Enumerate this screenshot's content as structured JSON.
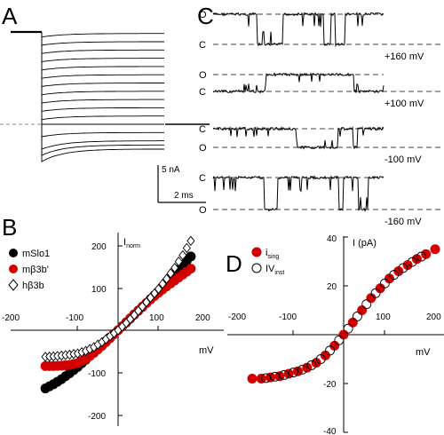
{
  "figure": {
    "panels": {
      "a": "A",
      "b": "B",
      "c": "C",
      "d": "D"
    }
  },
  "chart_data": [
    {
      "panel": "A",
      "type": "line",
      "scalebar": {
        "current": "5 nA",
        "time": "2 ms"
      },
      "traces": {
        "count": 16,
        "description_values_nA": {
          "hold_level": 0,
          "outward_steady_levels": [
            -11,
            -10,
            -9,
            -8,
            -7,
            -6,
            -5,
            -4,
            -3,
            -2,
            -1,
            0,
            1,
            2,
            2.5,
            3
          ],
          "tail_peak": 5.4
        }
      },
      "colors": {
        "trace": "#000000"
      }
    },
    {
      "panel": "C",
      "type": "line",
      "state_labels": {
        "open": "O",
        "closed": "C"
      },
      "traces": [
        {
          "voltage": "+160 mV",
          "top_state": "O",
          "bottom_state": "C"
        },
        {
          "voltage": "+100 mV",
          "top_state": "O",
          "bottom_state": "C"
        },
        {
          "voltage": "-100 mV",
          "top_state": "C",
          "bottom_state": "O"
        },
        {
          "voltage": "-160 mV",
          "top_state": "C",
          "bottom_state": "O"
        }
      ]
    },
    {
      "panel": "B",
      "type": "scatter",
      "ylabel": "I",
      "ylabel_sub": "norm",
      "xlabel": "mV",
      "xlim": [
        -200,
        200
      ],
      "ylim": [
        -200,
        200
      ],
      "xticks": [
        "-200",
        "-100",
        "100",
        "200"
      ],
      "yticks": [
        "200",
        "100",
        "-100",
        "-200"
      ],
      "series": [
        {
          "name": "mSlo1",
          "marker": "filled-circle",
          "color": "#000000",
          "x": [
            -180,
            -160,
            -140,
            -120,
            -100,
            -80,
            -60,
            -40,
            -20,
            0,
            20,
            40,
            60,
            80,
            100,
            120,
            140,
            160,
            180
          ],
          "y": [
            -138,
            -128,
            -116,
            -102,
            -87,
            -70,
            -52,
            -35,
            -17,
            0,
            18,
            37,
            55,
            74,
            92,
            112,
            133,
            155,
            175
          ]
        },
        {
          "name": "mβ3b'",
          "marker": "filled-circle",
          "color": "#d40000",
          "x": [
            -180,
            -160,
            -140,
            -120,
            -100,
            -80,
            -60,
            -40,
            -20,
            0,
            20,
            40,
            60,
            80,
            100,
            120,
            140,
            160,
            180
          ],
          "y": [
            -85,
            -85,
            -84,
            -82,
            -78,
            -68,
            -54,
            -37,
            -19,
            0,
            19,
            38,
            56,
            73,
            89,
            104,
            118,
            132,
            146
          ]
        },
        {
          "name": "hβ3b",
          "marker": "open-diamond",
          "color": "#000000",
          "x": [
            -180,
            -160,
            -140,
            -120,
            -100,
            -80,
            -60,
            -40,
            -20,
            0,
            20,
            40,
            60,
            80,
            100,
            120,
            140,
            160,
            180
          ],
          "y": [
            -63,
            -62,
            -60,
            -58,
            -55,
            -49,
            -40,
            -28,
            -14,
            0,
            17,
            36,
            56,
            77,
            98,
            122,
            148,
            178,
            212
          ]
        }
      ]
    },
    {
      "panel": "D",
      "type": "scatter",
      "ylabel": "I (pA)",
      "xlabel": "mV",
      "xlim": [
        -200,
        200
      ],
      "ylim": [
        -40,
        40
      ],
      "xticks": [
        "-200",
        "-100",
        "100",
        "200"
      ],
      "yticks": [
        "40",
        "20",
        "-20",
        "-40"
      ],
      "series": [
        {
          "name": "i",
          "name_sub": "sing",
          "marker": "filled-circle",
          "color": "#d40000",
          "x": [
            -200,
            -180,
            -160,
            -140,
            -120,
            -100,
            -80,
            -60,
            -40,
            -20,
            0,
            20,
            40,
            60,
            80,
            100,
            120,
            140,
            160,
            180,
            200
          ],
          "y": [
            -18,
            -18,
            -17.5,
            -17,
            -16,
            -15,
            -13.5,
            -11.5,
            -8.5,
            -4.5,
            0,
            5,
            10,
            15,
            19,
            23,
            26,
            28.5,
            31,
            33,
            35
          ]
        },
        {
          "name": "IV",
          "name_sub": "inst",
          "marker": "open-circle",
          "color": "#000000",
          "x": [
            -170,
            -150,
            -130,
            -110,
            -90,
            -70,
            -50,
            -30,
            -10,
            10,
            30,
            50,
            70,
            90,
            110,
            130,
            150,
            170
          ],
          "y": [
            -17.8,
            -17.2,
            -16.5,
            -15.5,
            -14.3,
            -12.5,
            -10,
            -6.5,
            -2.3,
            2.5,
            7.5,
            12.5,
            17,
            21,
            24.5,
            27.3,
            29.8,
            32
          ]
        }
      ]
    }
  ]
}
